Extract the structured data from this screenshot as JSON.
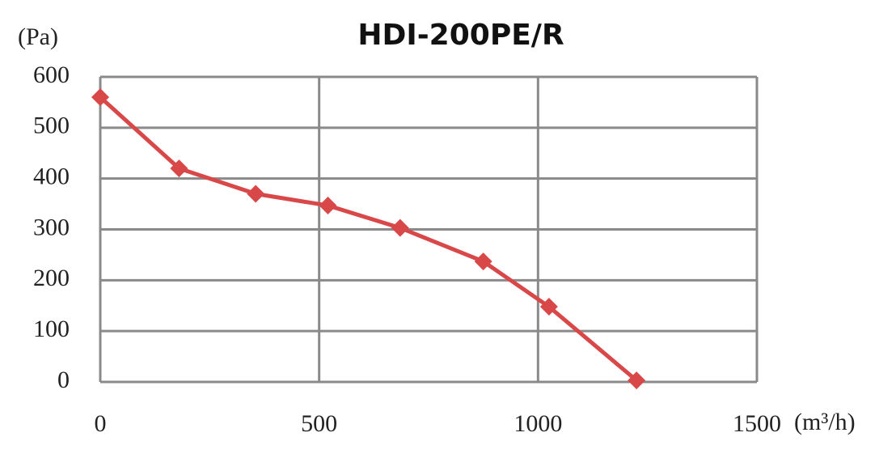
{
  "chart_data": {
    "type": "line",
    "title": "HDI-200PE/R",
    "y_label": "(Pa)",
    "x_label": "(m³/h)",
    "series": [
      {
        "name": "HDI-200PE/R",
        "color": "#d94848",
        "x": [
          0,
          180,
          355,
          520,
          685,
          875,
          1025,
          1225
        ],
        "values": [
          560,
          420,
          370,
          347,
          303,
          237,
          148,
          3
        ]
      }
    ],
    "xlim": [
      0,
      1500
    ],
    "xticks": [
      0,
      500,
      1000,
      1500
    ],
    "ylim": [
      0,
      600
    ],
    "yticks": [
      0,
      100,
      200,
      300,
      400,
      500,
      600
    ],
    "grid": true
  }
}
